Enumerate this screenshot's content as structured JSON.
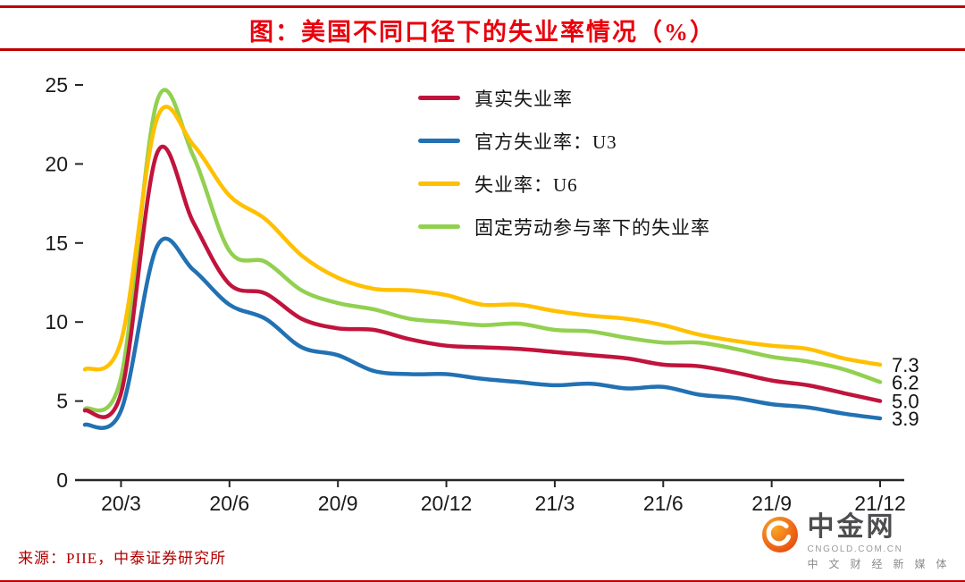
{
  "title": "图：美国不同口径下的失业率情况（%）",
  "source": "来源：PIIE，中泰证券研究所",
  "watermark": {
    "name": "中金网",
    "domain": "CNGOLD.COM.CN",
    "tagline": "中 文 财 经 新 媒 体"
  },
  "colors": {
    "title": "#e8000d",
    "rule": "#c00000",
    "source": "#b00000",
    "axis": "#262626",
    "logo_inner": "#f9a825",
    "logo_outer": "#e8490f"
  },
  "chart_data": {
    "type": "line",
    "x": [
      "20/2",
      "20/3",
      "20/4",
      "20/5",
      "20/6",
      "20/7",
      "20/8",
      "20/9",
      "20/10",
      "20/11",
      "20/12",
      "21/1",
      "21/2",
      "21/3",
      "21/4",
      "21/5",
      "21/6",
      "21/7",
      "21/8",
      "21/9",
      "21/10",
      "21/11",
      "21/12"
    ],
    "tick_labels": [
      "20/3",
      "20/6",
      "20/9",
      "20/12",
      "21/3",
      "21/6",
      "21/9",
      "21/12"
    ],
    "tick_indices": [
      1,
      4,
      7,
      10,
      13,
      16,
      19,
      22
    ],
    "ylim": [
      0,
      25
    ],
    "y_ticks": [
      0,
      5,
      10,
      15,
      20,
      25
    ],
    "grid": false,
    "legend_position": "top-center-inside",
    "series": [
      {
        "name": "真实失业率",
        "color": "#c0143c",
        "end_label": "5.0",
        "values": [
          4.4,
          5.5,
          20.7,
          16.3,
          12.4,
          11.8,
          10.2,
          9.6,
          9.5,
          8.9,
          8.5,
          8.4,
          8.3,
          8.1,
          7.9,
          7.7,
          7.3,
          7.2,
          6.8,
          6.3,
          6.0,
          5.5,
          5.0
        ]
      },
      {
        "name": "官方失业率：U3",
        "color": "#2271b3",
        "end_label": "3.9",
        "values": [
          3.5,
          4.4,
          14.8,
          13.3,
          11.1,
          10.2,
          8.4,
          7.9,
          6.9,
          6.7,
          6.7,
          6.4,
          6.2,
          6.0,
          6.1,
          5.8,
          5.9,
          5.4,
          5.2,
          4.8,
          4.6,
          4.2,
          3.9
        ]
      },
      {
        "name": "失业率：U6",
        "color": "#ffc000",
        "end_label": "7.3",
        "values": [
          7.0,
          8.8,
          22.9,
          21.2,
          18.0,
          16.5,
          14.2,
          12.8,
          12.1,
          12.0,
          11.7,
          11.1,
          11.1,
          10.7,
          10.4,
          10.2,
          9.8,
          9.2,
          8.8,
          8.5,
          8.3,
          7.7,
          7.3
        ]
      },
      {
        "name": "固定劳动参与率下的失业率",
        "color": "#92d050",
        "end_label": "6.2",
        "values": [
          4.5,
          6.5,
          24.0,
          20.5,
          14.5,
          13.8,
          12.0,
          11.2,
          10.8,
          10.2,
          10.0,
          9.8,
          9.9,
          9.5,
          9.4,
          9.0,
          8.7,
          8.7,
          8.3,
          7.8,
          7.5,
          7.0,
          6.2
        ]
      }
    ]
  }
}
